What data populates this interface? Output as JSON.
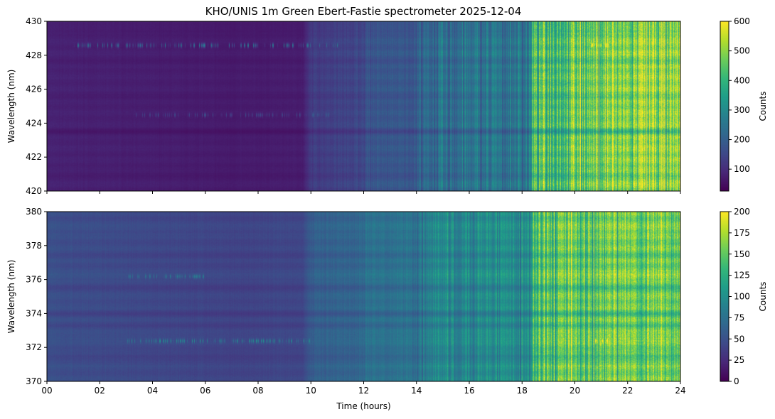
{
  "chart_data": [
    {
      "type": "heatmap",
      "title": "KHO/UNIS 1m Green Ebert-Fastie spectrometer 2025-12-04",
      "xlabel": "",
      "ylabel": "Wavelength (nm)",
      "xlim": [
        0,
        24
      ],
      "ylim": [
        420,
        430
      ],
      "yticks": [
        "420",
        "422",
        "424",
        "426",
        "428",
        "430"
      ],
      "colorbar": {
        "label": "Counts",
        "range": [
          26,
          600
        ],
        "ticks": [
          "100",
          "200",
          "300",
          "400",
          "500",
          "600"
        ]
      },
      "time_profile_counts": [
        [
          0,
          80
        ],
        [
          3,
          75
        ],
        [
          7,
          68
        ],
        [
          9.7,
          72
        ],
        [
          10,
          130
        ],
        [
          12,
          150
        ],
        [
          12.1,
          175
        ],
        [
          14,
          185
        ],
        [
          14.1,
          215
        ],
        [
          16,
          240
        ],
        [
          18.3,
          260
        ],
        [
          18.4,
          430
        ],
        [
          20,
          470
        ],
        [
          22,
          490
        ],
        [
          24,
          510
        ]
      ],
      "bands_nm_factor": [
        [
          423.5,
          0.8
        ],
        [
          421,
          0.9
        ],
        [
          425.5,
          0.93
        ],
        [
          427.6,
          0.9
        ],
        [
          429.5,
          0.88
        ]
      ],
      "emission_lines": [
        {
          "nm": 428.6,
          "hours": [
            1,
            11
          ],
          "peak": 260
        },
        {
          "nm": 428.6,
          "hours": [
            20.5,
            21.3
          ],
          "peak": 600
        },
        {
          "nm": 424.5,
          "hours": [
            3.2,
            10.7
          ],
          "peak": 140
        }
      ]
    },
    {
      "type": "heatmap",
      "title": "",
      "xlabel": "Time (hours)",
      "ylabel": "Wavelength (nm)",
      "xlim": [
        0,
        24
      ],
      "ylim": [
        370,
        380
      ],
      "xticks": [
        "00",
        "02",
        "04",
        "06",
        "08",
        "10",
        "12",
        "14",
        "16",
        "18",
        "20",
        "22",
        "24"
      ],
      "yticks": [
        "370",
        "372",
        "374",
        "376",
        "378",
        "380"
      ],
      "colorbar": {
        "label": "Counts",
        "range": [
          0,
          200
        ],
        "ticks": [
          "0",
          "25",
          "50",
          "75",
          "100",
          "125",
          "150",
          "175",
          "200"
        ]
      },
      "time_profile_counts": [
        [
          0,
          48
        ],
        [
          3,
          44
        ],
        [
          7,
          40
        ],
        [
          9.7,
          42
        ],
        [
          10,
          60
        ],
        [
          12,
          66
        ],
        [
          12.1,
          72
        ],
        [
          14,
          76
        ],
        [
          14.1,
          85
        ],
        [
          16,
          92
        ],
        [
          18.3,
          100
        ],
        [
          18.4,
          135
        ],
        [
          20,
          150
        ],
        [
          22,
          150
        ],
        [
          24,
          160
        ]
      ],
      "bands_nm_factor": [
        [
          376.2,
          1.12
        ],
        [
          375.6,
          0.85
        ],
        [
          374,
          0.85
        ],
        [
          372.6,
          1.1
        ],
        [
          371.5,
          0.85
        ],
        [
          373.3,
          0.92
        ],
        [
          377.4,
          0.93
        ],
        [
          379,
          1.08
        ]
      ],
      "emission_lines": [
        {
          "nm": 372.4,
          "hours": [
            3,
            10
          ],
          "peak": 90
        },
        {
          "nm": 372.4,
          "hours": [
            20.7,
            21.3
          ],
          "peak": 190
        },
        {
          "nm": 376.2,
          "hours": [
            3,
            6
          ],
          "peak": 70
        }
      ]
    }
  ]
}
